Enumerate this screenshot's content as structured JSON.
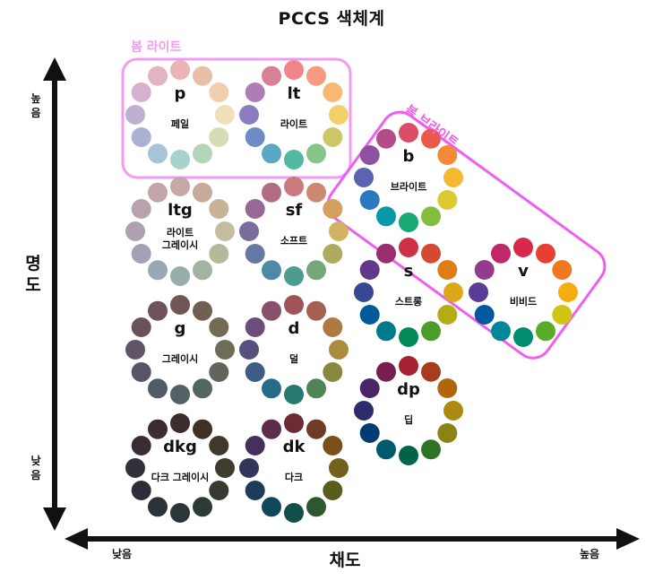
{
  "title": "PCCS  색체계",
  "axes": {
    "y_label": "명도",
    "x_label": "채도",
    "y_high": "높음",
    "y_low": "낮음",
    "x_low": "낮음",
    "x_high": "높음"
  },
  "groups": [
    {
      "label": "봄 라이트",
      "color": "#f19cf1"
    },
    {
      "label": "봄 브라이트",
      "color": "#ee5fee"
    }
  ],
  "tones": [
    {
      "code": "p",
      "name": "페일",
      "colors": [
        "#e8b4b4",
        "#e9bfa8",
        "#f1ceae",
        "#eee0b8",
        "#d8dcb6",
        "#b4d6b8",
        "#a8d2cc",
        "#a8c4d6",
        "#aab2d4",
        "#c0b0d0",
        "#d6b0cc",
        "#e3b3c1"
      ]
    },
    {
      "code": "lt",
      "name": "라이트",
      "colors": [
        "#f0868a",
        "#f59a80",
        "#f9b871",
        "#f3d06a",
        "#ccc86a",
        "#86c48a",
        "#52b8a2",
        "#5aa8c4",
        "#6d8cc6",
        "#8c7cc0",
        "#b07cb6",
        "#d88098"
      ]
    },
    {
      "code": "ltg",
      "name": "라이트\n그레이시",
      "colors": [
        "#c6a8a6",
        "#c6aa9a",
        "#c8b298",
        "#c4bc9e",
        "#b6b89e",
        "#a4b2a0",
        "#98aeaa",
        "#9aa8b4",
        "#a2a2b4",
        "#aea2b2",
        "#b8a2ae",
        "#c2a4aa"
      ]
    },
    {
      "code": "sf",
      "name": "소프트",
      "colors": [
        "#c87a7c",
        "#cc8870",
        "#d4a060",
        "#ceb460",
        "#aeaa5e",
        "#74a87a",
        "#4c9c92",
        "#4c8aa8",
        "#6478a4",
        "#7a6c9c",
        "#966896",
        "#b26c84"
      ]
    },
    {
      "code": "b",
      "name": "브라이트",
      "colors": [
        "#dc4c68",
        "#ea5a4c",
        "#f48a38",
        "#f6b830",
        "#dcca30",
        "#84bc40",
        "#18a874",
        "#0898a8",
        "#2a78c0",
        "#5a64b0",
        "#8c52a0",
        "#b44c88"
      ]
    },
    {
      "code": "g",
      "name": "그레이시",
      "colors": [
        "#705656",
        "#706052",
        "#746a56",
        "#6e6c54",
        "#60665a",
        "#546660",
        "#526264",
        "#525a66",
        "#565466",
        "#605468",
        "#68525e",
        "#6c545a"
      ]
    },
    {
      "code": "d",
      "name": "덜",
      "colors": [
        "#a05458",
        "#a46050",
        "#ae7a40",
        "#aa8c40",
        "#88883c",
        "#4e8456",
        "#247a70",
        "#266c8a",
        "#3e5c88",
        "#56507e",
        "#6c4c78",
        "#88506a"
      ]
    },
    {
      "code": "s",
      "name": "스트롱",
      "colors": [
        "#d03044",
        "#d44a30",
        "#e07c18",
        "#dca81a",
        "#b4ac14",
        "#4c9c2c",
        "#008a58",
        "#007a88",
        "#005a98",
        "#364894",
        "#62388a",
        "#982e6e"
      ]
    },
    {
      "code": "v",
      "name": "비비드",
      "colors": [
        "#d8284c",
        "#e64032",
        "#f07820",
        "#f4ae10",
        "#d0c414",
        "#58ac28",
        "#008c70",
        "#00889a",
        "#0058a0",
        "#5a3c94",
        "#943c8c",
        "#c0286a"
      ]
    },
    {
      "code": "dkg",
      "name": "다크 그레이시",
      "colors": [
        "#3c2c2c",
        "#3e3228",
        "#40382a",
        "#3e3c2c",
        "#363a30",
        "#2e3a34",
        "#2c3638",
        "#2c323a",
        "#2e2e3a",
        "#34303a",
        "#382c36",
        "#3c2c30"
      ]
    },
    {
      "code": "dk",
      "name": "다크",
      "colors": [
        "#6a2c32",
        "#6e3a2a",
        "#785018",
        "#72601e",
        "#5a5c1e",
        "#2e5630",
        "#104e48",
        "#0e485a",
        "#1e3c5a",
        "#32345a",
        "#44305a",
        "#5c2c48"
      ]
    },
    {
      "code": "dp",
      "name": "딥",
      "colors": [
        "#a81e32",
        "#a83c1e",
        "#b2660c",
        "#ac8a10",
        "#8a8414",
        "#2e7226",
        "#00644a",
        "#005a6e",
        "#003c72",
        "#2c2c6c",
        "#4a2668",
        "#781e50"
      ]
    }
  ]
}
